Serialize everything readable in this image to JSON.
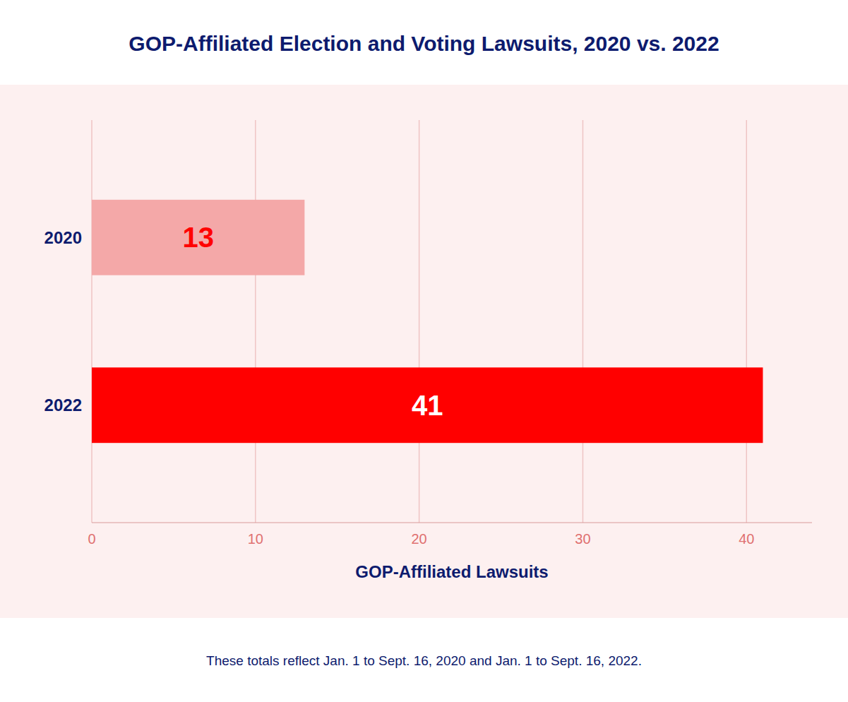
{
  "chart_data": {
    "type": "bar",
    "orientation": "horizontal",
    "title": "GOP-Affiliated Election and Voting Lawsuits, 2020 vs. 2022",
    "categories": [
      "2022",
      "2020"
    ],
    "values": [
      41,
      13
    ],
    "colors": [
      "#ff0000",
      "#f4a8a8"
    ],
    "xlabel": "GOP-Affiliated Lawsuits",
    "xlim": [
      0,
      44
    ],
    "xticks": [
      0,
      10,
      20,
      30,
      40
    ],
    "grid": true,
    "data_labels": true,
    "annotations": [
      "These totals reflect Jan. 1 to Sept. 16, 2020 and Jan. 1 to Sept. 16, 2022."
    ]
  }
}
